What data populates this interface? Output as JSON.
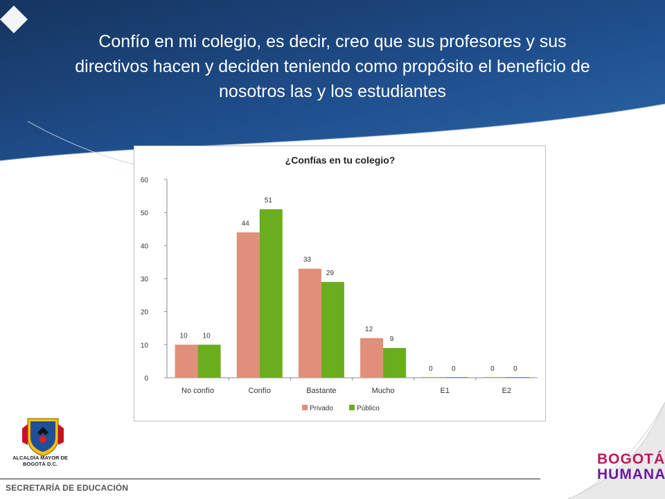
{
  "slide": {
    "title": "Confío en mi colegio, es decir, creo que sus profesores y sus directivos hacen y deciden teniendo como propósito el beneficio de nosotros las y los estudiantes",
    "footer": "SECRETARÍA DE EDUCACIÓN",
    "logo_caption": "ALCALDÍA MAYOR DE BOGOTÁ D.C.",
    "brand_line1": "BOGOTÁ",
    "brand_line2": "HUMANA"
  },
  "colors": {
    "header_blue": "#1f4e8c",
    "privado": "#e0907a",
    "publico": "#6aad1f"
  },
  "chart_data": {
    "type": "bar",
    "title": "¿Confías en tu colegio?",
    "categories": [
      "No confío",
      "Confío",
      "Bastante",
      "Mucho",
      "E1",
      "E2"
    ],
    "series": [
      {
        "name": "Privado",
        "values": [
          10,
          44,
          33,
          12,
          0,
          0
        ]
      },
      {
        "name": "Público",
        "values": [
          10,
          51,
          29,
          9,
          0,
          0
        ]
      }
    ],
    "ylim": [
      0,
      60
    ],
    "yticks": [
      0,
      10,
      20,
      30,
      40,
      50,
      60
    ],
    "legend": "bottom",
    "grid": false
  }
}
